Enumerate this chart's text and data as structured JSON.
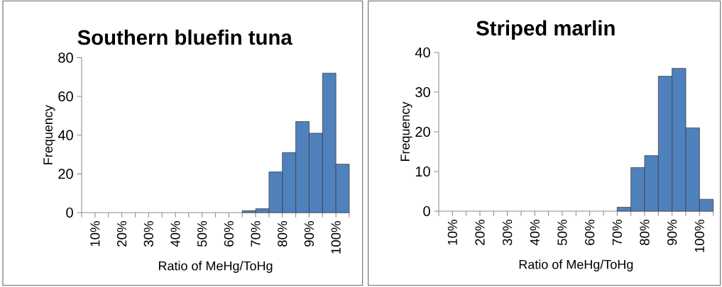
{
  "chart_data": [
    {
      "type": "histogram",
      "title": "Southern bluefin tuna",
      "xlabel": "Ratio of MeHg/ToHg",
      "ylabel": "Frequency",
      "color": "#4f81bd",
      "bins": [
        5,
        10,
        15,
        20,
        25,
        30,
        35,
        40,
        45,
        50,
        55,
        60,
        65,
        70,
        75,
        80,
        85,
        90,
        95,
        100,
        105
      ],
      "values": [
        0,
        0,
        0,
        0,
        0,
        0,
        0,
        0,
        0,
        0,
        0,
        0,
        1,
        2,
        21,
        31,
        47,
        41,
        72,
        25
      ],
      "xlim": [
        5,
        105
      ],
      "xticks": [
        {
          "value": 5,
          "label": null
        },
        {
          "value": 10,
          "label": "10%"
        },
        {
          "value": 15,
          "label": null
        },
        {
          "value": 20,
          "label": "20%"
        },
        {
          "value": 25,
          "label": null
        },
        {
          "value": 30,
          "label": "30%"
        },
        {
          "value": 35,
          "label": null
        },
        {
          "value": 40,
          "label": "40%"
        },
        {
          "value": 45,
          "label": null
        },
        {
          "value": 50,
          "label": "50%"
        },
        {
          "value": 55,
          "label": null
        },
        {
          "value": 60,
          "label": "60%"
        },
        {
          "value": 65,
          "label": null
        },
        {
          "value": 70,
          "label": "70%"
        },
        {
          "value": 75,
          "label": null
        },
        {
          "value": 80,
          "label": "80%"
        },
        {
          "value": 85,
          "label": null
        },
        {
          "value": 90,
          "label": "90%"
        },
        {
          "value": 95,
          "label": null
        },
        {
          "value": 100,
          "label": "100%"
        },
        {
          "value": 105,
          "label": null
        }
      ],
      "ylim": [
        0,
        80
      ],
      "yticks": [
        0,
        20,
        40,
        60,
        80
      ]
    },
    {
      "type": "histogram",
      "title": "Striped marlin",
      "xlabel": "Ratio of MeHg/ToHg",
      "ylabel": "Frequency",
      "color": "#4f81bd",
      "bins": [
        5,
        10,
        15,
        20,
        25,
        30,
        35,
        40,
        45,
        50,
        55,
        60,
        65,
        70,
        75,
        80,
        85,
        90,
        95,
        100,
        105
      ],
      "values": [
        0,
        0,
        0,
        0,
        0,
        0,
        0,
        0,
        0,
        0,
        0,
        0,
        0,
        1,
        11,
        14,
        34,
        36,
        21,
        3
      ],
      "xlim": [
        5,
        105
      ],
      "xticks": [
        {
          "value": 5,
          "label": null
        },
        {
          "value": 10,
          "label": "10%"
        },
        {
          "value": 15,
          "label": null
        },
        {
          "value": 20,
          "label": "20%"
        },
        {
          "value": 25,
          "label": null
        },
        {
          "value": 30,
          "label": "30%"
        },
        {
          "value": 35,
          "label": null
        },
        {
          "value": 40,
          "label": "40%"
        },
        {
          "value": 45,
          "label": null
        },
        {
          "value": 50,
          "label": "50%"
        },
        {
          "value": 55,
          "label": null
        },
        {
          "value": 60,
          "label": "60%"
        },
        {
          "value": 65,
          "label": null
        },
        {
          "value": 70,
          "label": "70%"
        },
        {
          "value": 75,
          "label": null
        },
        {
          "value": 80,
          "label": "80%"
        },
        {
          "value": 85,
          "label": null
        },
        {
          "value": 90,
          "label": "90%"
        },
        {
          "value": 95,
          "label": null
        },
        {
          "value": 100,
          "label": "100%"
        },
        {
          "value": 105,
          "label": null
        }
      ],
      "ylim": [
        0,
        40
      ],
      "yticks": [
        0,
        10,
        20,
        30,
        40
      ]
    }
  ]
}
